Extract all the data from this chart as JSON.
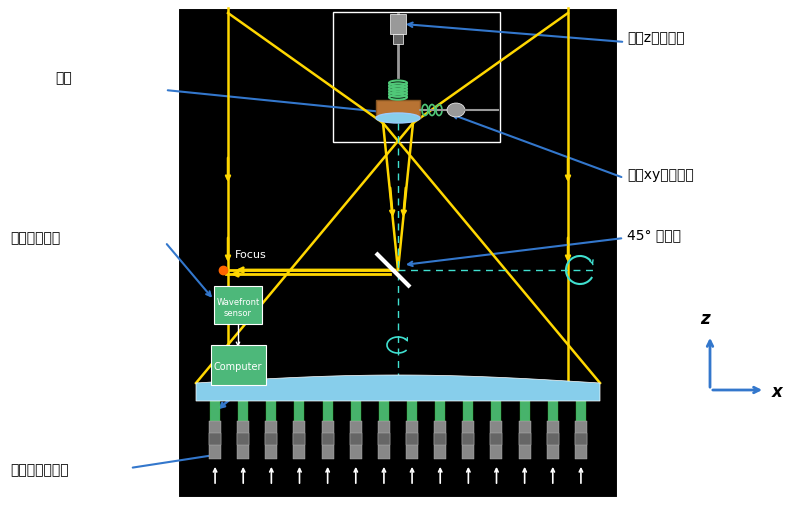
{
  "bg_color": "#000000",
  "fig_bg_color": "#ffffff",
  "white": "#FFFFFF",
  "yellow": "#FFD700",
  "blue_arrow": "#3377CC",
  "teal": "#40E0D0",
  "green": "#50C878",
  "copper": "#B87333",
  "gray": "#999999",
  "light_blue": "#87CEEB",
  "labels": {
    "fukyo": "副鏡",
    "fukyo_z": "副鏡z駅動装置",
    "fukyo_xy": "副鏡xy駅動装置",
    "flat45": "45° 平面鏡",
    "hamen": "波面センサー",
    "actuator": "アクチュエータ",
    "focus": "Focus",
    "wavefront": "Wavefront\nsensor",
    "computer": "Computer",
    "z_axis": "z",
    "x_axis": "x"
  }
}
